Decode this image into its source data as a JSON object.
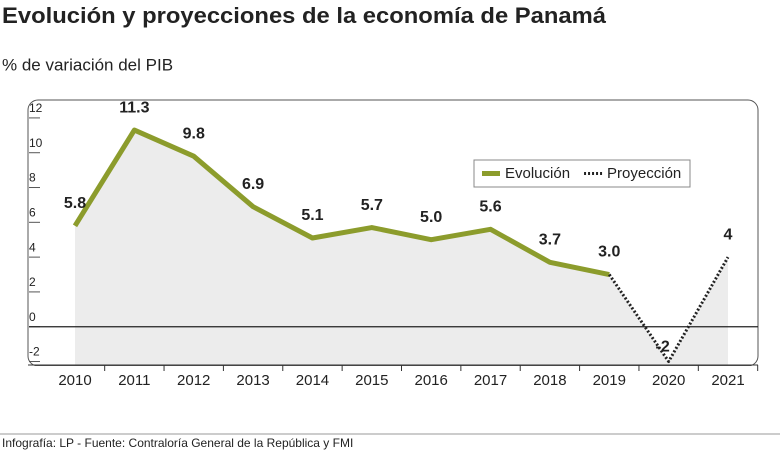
{
  "chart_data": {
    "type": "line",
    "title": "Evolución y proyecciones de la economía de Panamá",
    "subtitle": "% de variación del PIB",
    "source": "Infografía: LP - Fuente: Contraloría General de la República y FMI",
    "categories": [
      "2010",
      "2011",
      "2012",
      "2013",
      "2014",
      "2015",
      "2016",
      "2017",
      "2018",
      "2019",
      "2020",
      "2021"
    ],
    "series": [
      {
        "name": "Evolución",
        "color": "#8c9c2c",
        "style": "solid",
        "values": [
          5.8,
          11.3,
          9.8,
          6.9,
          5.1,
          5.7,
          5.0,
          5.6,
          3.7,
          3.0,
          null,
          null
        ],
        "value_labels": [
          "5.8",
          "11.3",
          "9.8",
          "6.9",
          "5.1",
          "5.7",
          "5.0",
          "5.6",
          "3.7",
          "3.0",
          null,
          null
        ]
      },
      {
        "name": "Proyección",
        "color": "#222222",
        "style": "dotted",
        "values": [
          null,
          null,
          null,
          null,
          null,
          null,
          null,
          null,
          null,
          3.0,
          -2,
          4
        ],
        "value_labels": [
          null,
          null,
          null,
          null,
          null,
          null,
          null,
          null,
          null,
          null,
          "-2",
          "4"
        ]
      }
    ],
    "negative_label_color": "#c0272d",
    "area_color": "#ececec",
    "ylim": [
      -2.2,
      12.8
    ],
    "yticks": [
      -2,
      0,
      2,
      4,
      6,
      8,
      10,
      12
    ],
    "legend": "upper right"
  }
}
